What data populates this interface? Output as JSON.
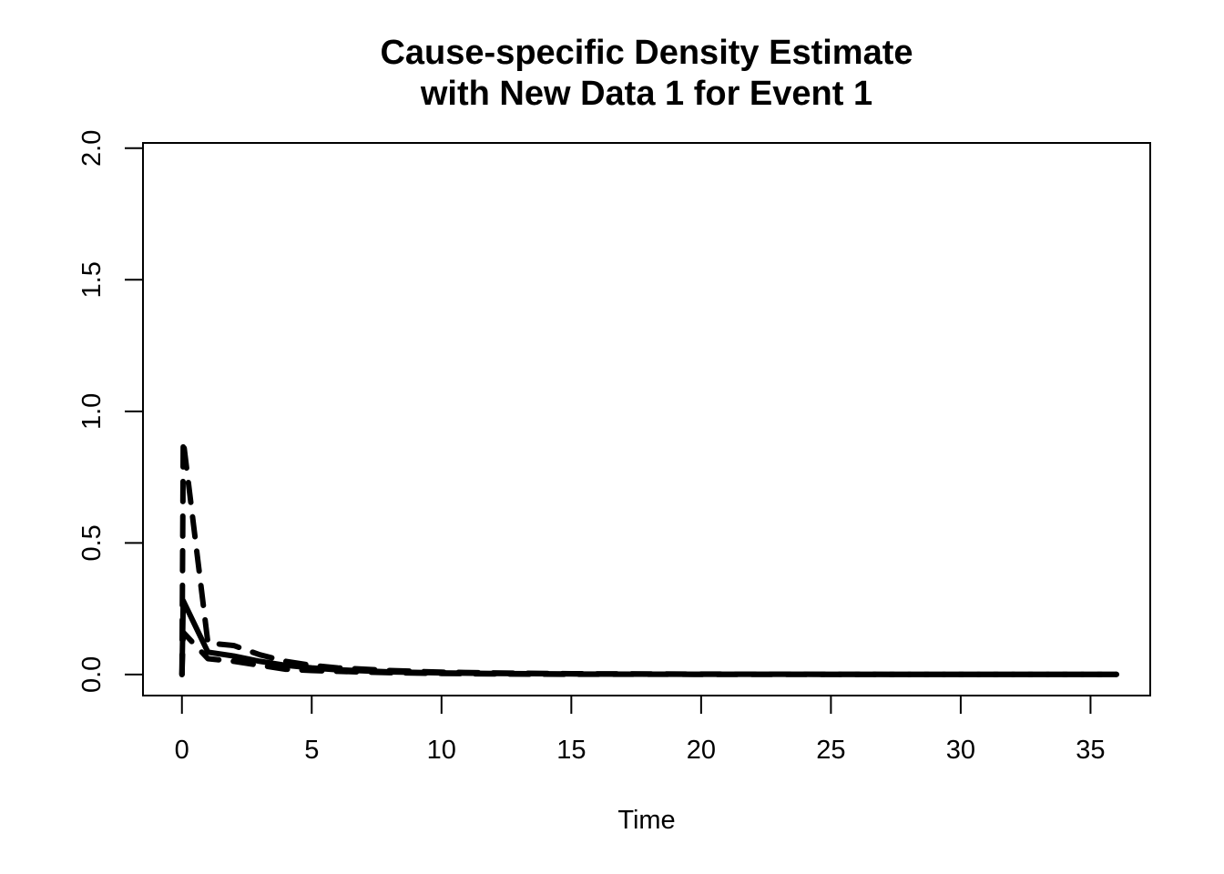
{
  "chart_data": {
    "type": "line",
    "title": [
      "Cause-specific Density Estimate",
      "with New Data 1 for Event 1"
    ],
    "xlabel": "Time",
    "ylabel": "",
    "xlim": [
      -1.5,
      37.3
    ],
    "ylim": [
      -0.08,
      2.02
    ],
    "x_ticks": [
      0,
      5,
      10,
      15,
      20,
      25,
      30,
      35
    ],
    "y_ticks": [
      0.0,
      0.5,
      1.0,
      1.5,
      2.0
    ],
    "x_tick_labels": [
      "0",
      "5",
      "10",
      "15",
      "20",
      "25",
      "30",
      "35"
    ],
    "y_tick_labels": [
      "0.0",
      "0.5",
      "1.0",
      "1.5",
      "2.0"
    ],
    "grid": false,
    "legend": "none",
    "series": [
      {
        "style": "solid",
        "color": "#000000",
        "x": [
          0,
          0.05,
          1,
          2,
          3,
          4,
          5,
          6,
          8,
          10,
          12,
          15,
          20,
          25,
          30,
          36
        ],
        "y": [
          0,
          0.28,
          0.085,
          0.07,
          0.05,
          0.035,
          0.025,
          0.018,
          0.01,
          0.006,
          0.004,
          0.002,
          0.001,
          0.0005,
          0.0003,
          0.0001
        ]
      },
      {
        "style": "dashed",
        "color": "#000000",
        "x": [
          0,
          0.05,
          1,
          2,
          3,
          4,
          5,
          6,
          8,
          10,
          12,
          15,
          20,
          25,
          30,
          36
        ],
        "y": [
          0,
          0.89,
          0.12,
          0.11,
          0.075,
          0.05,
          0.035,
          0.025,
          0.015,
          0.009,
          0.006,
          0.003,
          0.0015,
          0.0008,
          0.0004,
          0.0002
        ]
      },
      {
        "style": "dashed",
        "color": "#000000",
        "x": [
          0,
          0.05,
          1,
          2,
          3,
          4,
          5,
          6,
          8,
          10,
          12,
          15,
          20,
          25,
          30,
          36
        ],
        "y": [
          0,
          0.16,
          0.06,
          0.05,
          0.035,
          0.02,
          0.015,
          0.012,
          0.007,
          0.004,
          0.002,
          0.001,
          0.0005,
          0.0003,
          0.0002,
          0.0001
        ]
      }
    ]
  }
}
